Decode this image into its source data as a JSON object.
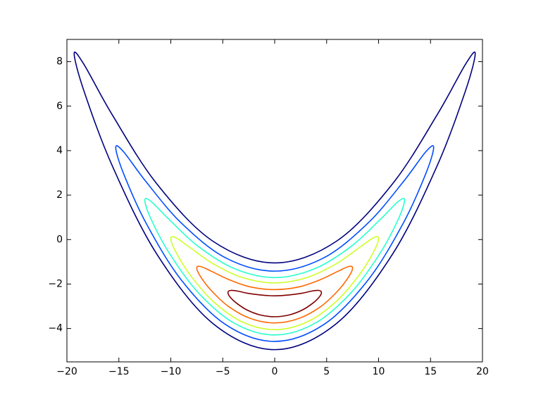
{
  "chart_data": {
    "type": "contour",
    "xlim": [
      -20,
      20
    ],
    "ylim": [
      -5.5,
      9
    ],
    "xticks": [
      {
        "value": -20,
        "label": "−20"
      },
      {
        "value": -15,
        "label": "−15"
      },
      {
        "value": -10,
        "label": "−10"
      },
      {
        "value": -5,
        "label": "−5"
      },
      0,
      5,
      10,
      15,
      20
    ],
    "yticks": [
      {
        "value": -4,
        "label": "−4"
      },
      {
        "value": -2,
        "label": "−2"
      },
      0,
      2,
      4,
      6,
      8
    ],
    "series": [
      {
        "color": "#00007f",
        "x": [
          19.3,
          18.35,
          15.61,
          11.35,
          5.96,
          0,
          -5.96,
          -11.35,
          -15.61,
          -18.35,
          -19.3,
          -18.35,
          -15.61,
          -11.35,
          -5.96,
          0,
          5.96,
          11.35,
          15.61,
          18.35,
          19.3
        ],
        "y": [
          8.36,
          7.87,
          5.59,
          2.51,
          -0.07,
          -1.05,
          -0.07,
          2.51,
          5.59,
          7.87,
          8.36,
          6.67,
          3.29,
          -0.65,
          -3.77,
          -4.95,
          -3.77,
          -0.65,
          3.29,
          6.67,
          8.36
        ]
      },
      {
        "color": "#004cff",
        "x": [
          15.3,
          14.55,
          12.38,
          9.0,
          4.73,
          0,
          -4.73,
          -9.0,
          -12.38,
          -14.55,
          -15.3,
          -14.55,
          -12.38,
          -9.0,
          -4.73,
          0,
          4.73,
          9.0,
          12.38,
          14.55,
          15.3
        ],
        "y": [
          4.14,
          3.95,
          2.6,
          0.75,
          -0.82,
          -1.42,
          -0.82,
          0.75,
          2.6,
          3.95,
          4.14,
          2.97,
          0.74,
          -1.81,
          -3.82,
          -4.58,
          -3.82,
          -1.81,
          0.74,
          2.97,
          4.14
        ]
      },
      {
        "color": "#29ffce",
        "x": [
          12.5,
          11.89,
          10.11,
          7.35,
          3.86,
          0,
          -3.86,
          -7.35,
          -10.11,
          -11.89,
          -12.5,
          -11.89,
          -10.11,
          -7.35,
          -3.86,
          0,
          3.86,
          7.35,
          10.11,
          11.89,
          12.5
        ],
        "y": [
          1.77,
          1.71,
          0.88,
          -0.31,
          -1.31,
          -1.71,
          -1.31,
          -0.31,
          0.88,
          1.71,
          1.77,
          0.91,
          -0.64,
          -2.39,
          -3.77,
          -4.29,
          -3.77,
          -2.39,
          -0.64,
          0.91,
          1.77
        ]
      },
      {
        "color": "#ceff29",
        "x": [
          10,
          9.51,
          8.09,
          5.88,
          3.09,
          0,
          -3.09,
          -5.88,
          -8.09,
          -9.51,
          -10,
          -9.51,
          -8.09,
          -5.88,
          -3.09,
          0,
          3.09,
          5.88,
          8.09,
          9.51,
          10
        ],
        "y": [
          0.05,
          0.08,
          -0.38,
          -1.1,
          -1.71,
          -1.95,
          -1.71,
          -1.1,
          -0.38,
          0.08,
          0.05,
          -0.56,
          -1.62,
          -2.8,
          -3.71,
          -4.05,
          -3.71,
          -2.8,
          -1.62,
          -0.56,
          0.05
        ]
      },
      {
        "color": "#ff6800",
        "x": [
          7.5,
          7.13,
          6.07,
          4.41,
          2.32,
          0,
          -2.32,
          -4.41,
          -6.07,
          -7.13,
          -7.5,
          -7.13,
          -6.07,
          -4.41,
          -2.32,
          0,
          2.32,
          4.41,
          6.07,
          7.13,
          7.5
        ],
        "y": [
          -1.28,
          -1.21,
          -1.43,
          -1.8,
          -2.13,
          -2.25,
          -2.13,
          -1.8,
          -1.43,
          -1.21,
          -1.28,
          -1.67,
          -2.31,
          -3.02,
          -3.55,
          -3.75,
          -3.55,
          -3.02,
          -2.31,
          -1.67,
          -1.28
        ]
      },
      {
        "color": "#7f0000",
        "x": [
          4.5,
          4.28,
          3.64,
          2.65,
          1.39,
          0,
          -1.39,
          -2.65,
          -3.64,
          -4.28,
          -4.5,
          -4.28,
          -3.64,
          -2.65,
          -1.39,
          0,
          1.39,
          2.65,
          3.64,
          4.28,
          4.5
        ],
        "y": [
          -2.38,
          -2.29,
          -2.31,
          -2.41,
          -2.49,
          -2.53,
          -2.49,
          -2.41,
          -2.31,
          -2.29,
          -2.38,
          -2.59,
          -2.87,
          -3.17,
          -3.39,
          -3.47,
          -3.39,
          -3.17,
          -2.87,
          -2.59,
          -2.38
        ]
      }
    ]
  }
}
